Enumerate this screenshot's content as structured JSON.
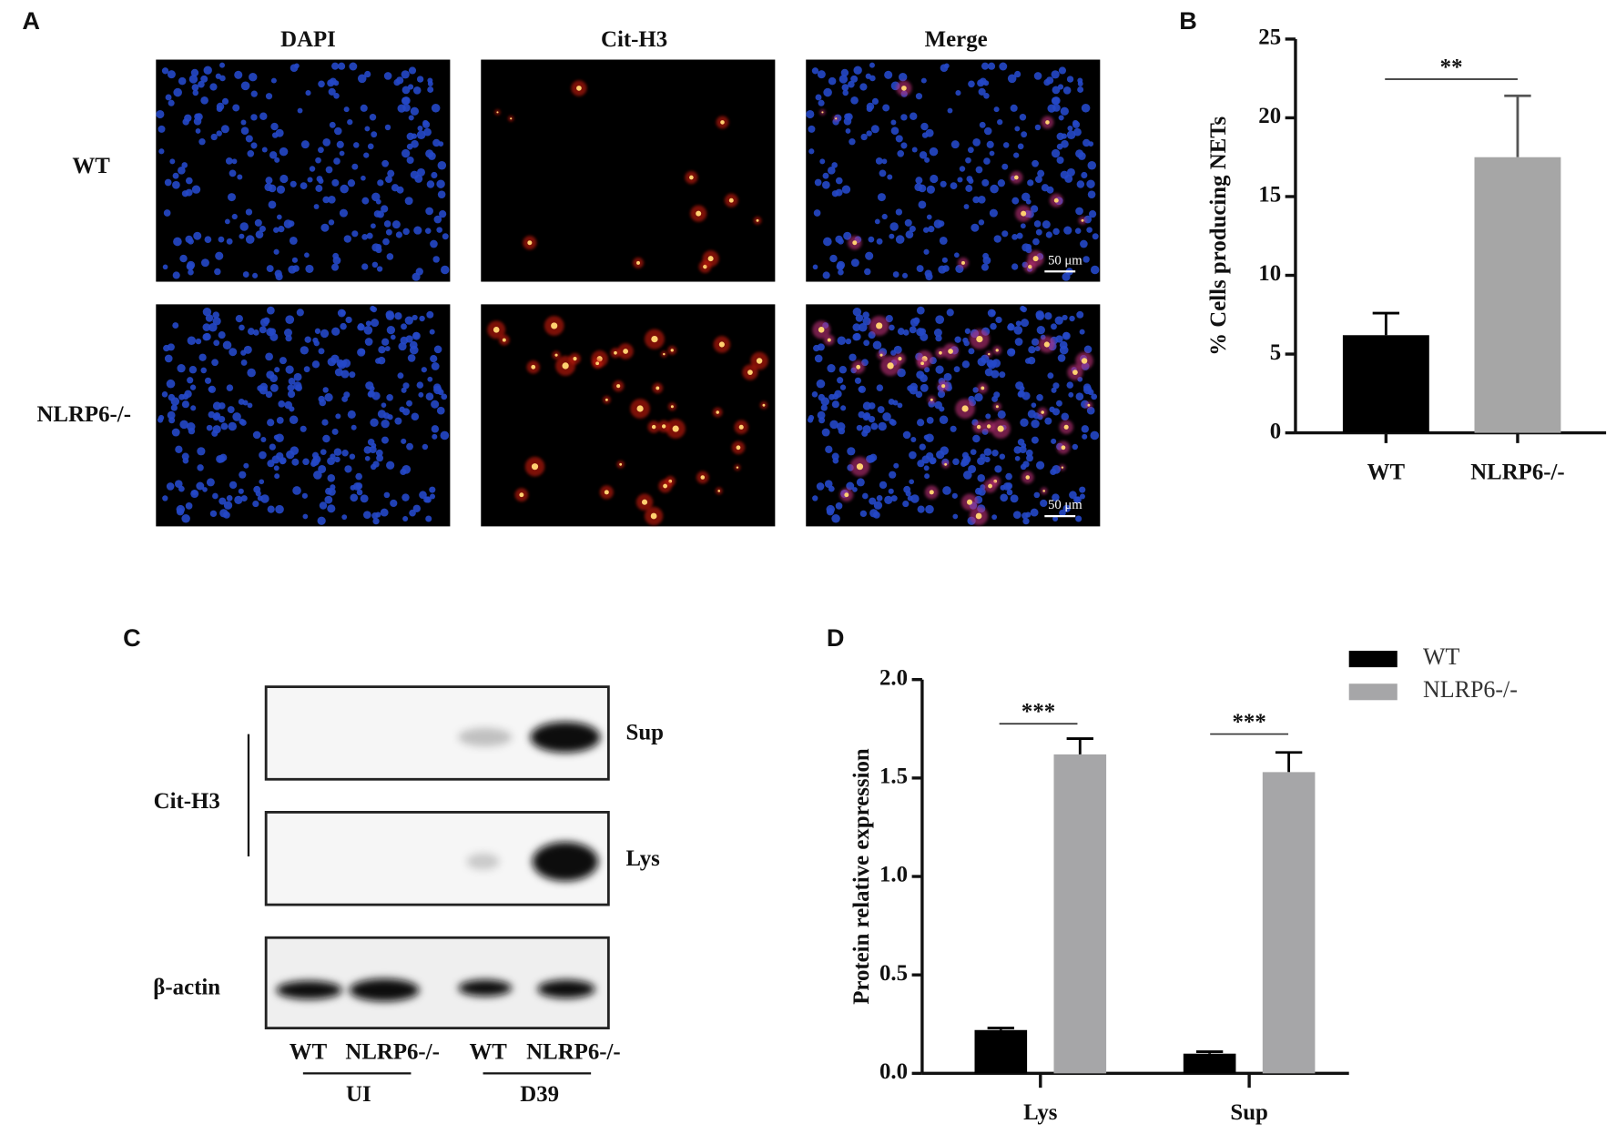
{
  "panel_labels": [
    "A",
    "B",
    "C",
    "D"
  ],
  "panel_a": {
    "columns": [
      "DAPI",
      "Cit-H3",
      "Merge"
    ],
    "rows": [
      "WT",
      "NLRP6-/-"
    ],
    "scale_bars": [
      "50 μm",
      "50 μm"
    ]
  },
  "panel_c": {
    "blots": [
      "Sup",
      "Lys",
      "β-actin"
    ],
    "bracket_label": "Cit-H3",
    "lanes": [
      "WT",
      "NLRP6-/-",
      "WT",
      "NLRP6-/-"
    ],
    "groups": [
      "UI",
      "D39"
    ]
  },
  "chart_data": [
    {
      "type": "bar",
      "ylabel": "% Cells producing NETs",
      "categories": [
        "WT",
        "NLRP6-/-"
      ],
      "values": [
        6.2,
        17.5
      ],
      "errors": [
        1.4,
        3.9
      ],
      "colors": [
        "#000000",
        "#a6a6a6"
      ],
      "ylim": [
        0,
        25
      ],
      "yticks": [
        0,
        5,
        10,
        15,
        20,
        25
      ],
      "annotations": [
        "**"
      ]
    },
    {
      "type": "grouped_bar",
      "ylabel": "Protein relative expression",
      "categories": [
        "Lys",
        "Sup"
      ],
      "series": [
        {
          "name": "WT",
          "color": "#000000",
          "values": [
            0.22,
            0.1
          ],
          "errors": [
            0.01,
            0.01
          ]
        },
        {
          "name": "NLRP6-/-",
          "color": "#a6a6a8",
          "values": [
            1.62,
            1.53
          ],
          "errors": [
            0.08,
            0.1
          ]
        }
      ],
      "ylim": [
        0,
        2
      ],
      "yticks": [
        {
          "value": 0,
          "label": "0.0"
        },
        0.5,
        {
          "value": 1,
          "label": "1.0"
        },
        1.5,
        {
          "value": 2,
          "label": "2.0"
        }
      ],
      "legend": "upper right",
      "annotations": [
        "***",
        "***"
      ]
    }
  ]
}
